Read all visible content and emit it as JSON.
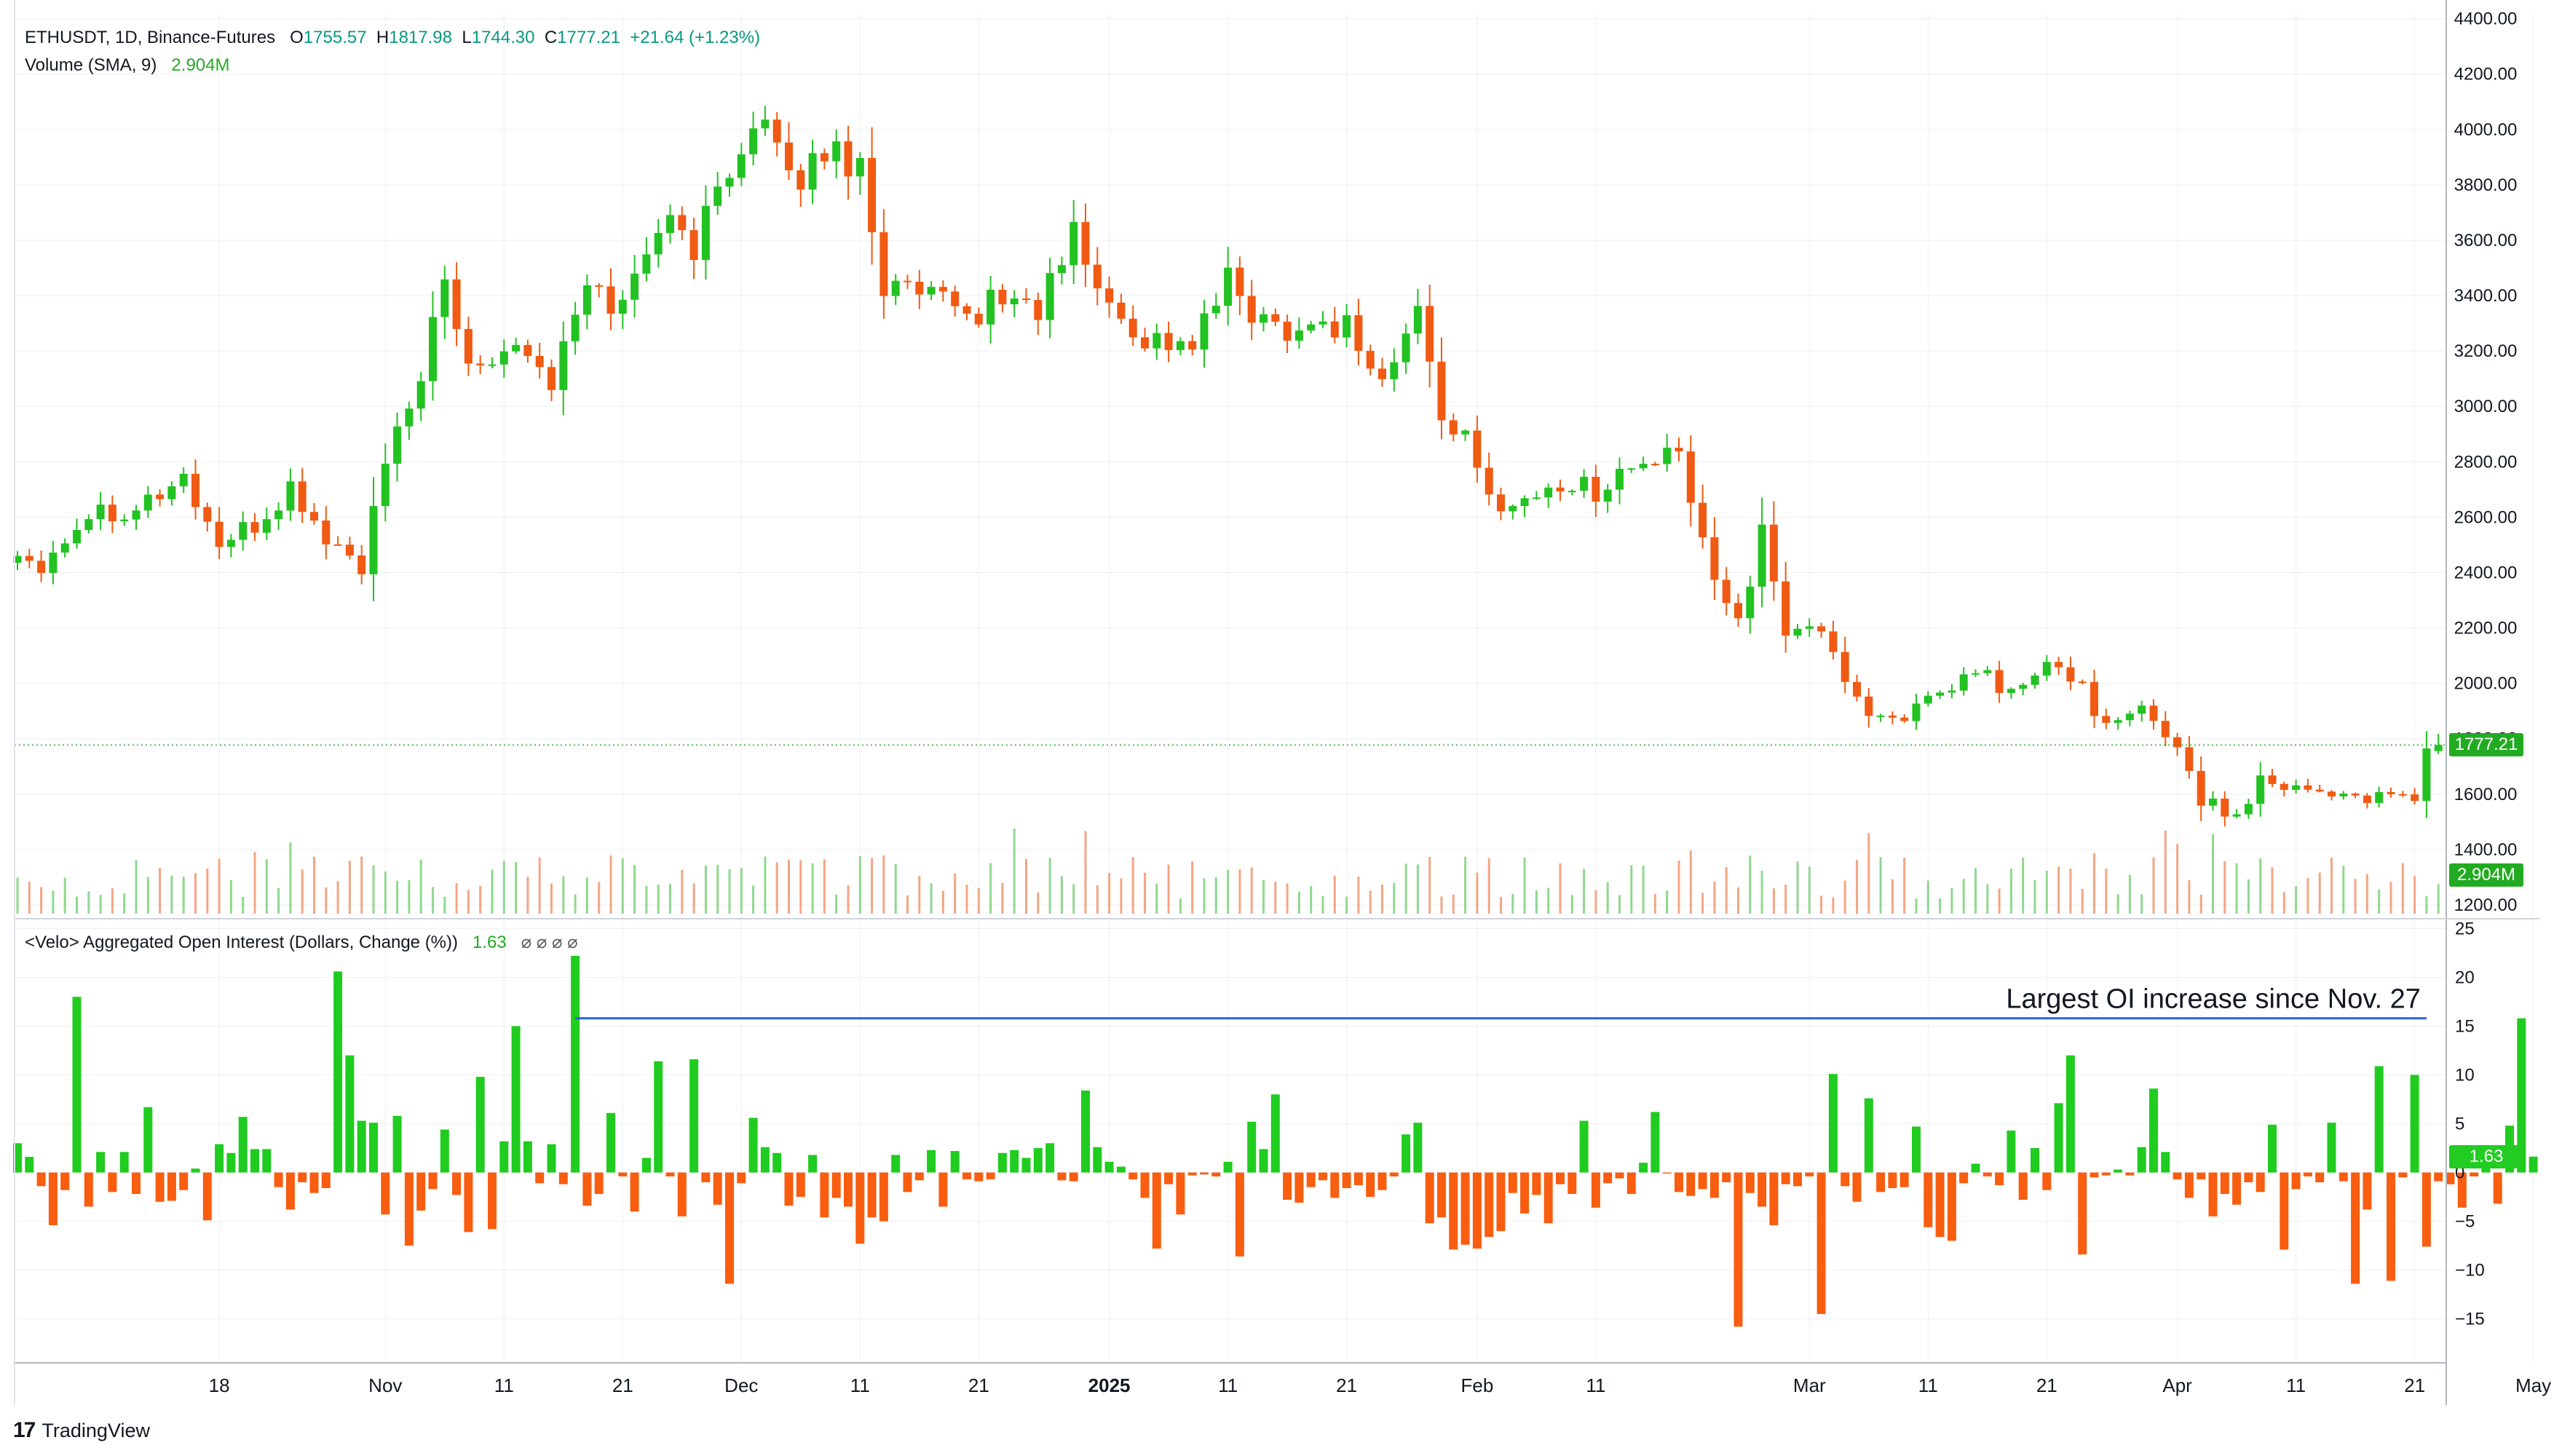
{
  "header": {
    "symbol_line": "ETHUSDT, 1D, Binance-Futures",
    "o_label": "O",
    "o_value": "1755.57",
    "h_label": "H",
    "h_value": "1817.98",
    "l_label": "L",
    "l_value": "1744.30",
    "c_label": "C",
    "c_value": "1777.21",
    "change": "+21.64 (+1.23%)",
    "volume_label": "Volume (SMA, 9)",
    "volume_value": "2.904M"
  },
  "oi_header": {
    "label": "<Velo> Aggregated Open Interest (Dollars, Change (%))",
    "value": "1.63",
    "placeholders": "⌀ ⌀ ⌀ ⌀"
  },
  "annotation": "Largest OI increase since Nov. 27",
  "price_tag": "1777.21",
  "volume_tag": "2.904M",
  "oi_tag": "1.63",
  "branding": "TradingView",
  "colors": {
    "up": "#22c222",
    "down": "#f05a12",
    "vol_up": "#8fd88f",
    "vol_down": "#f5a583",
    "oi_up": "#1fcc1f",
    "oi_down": "#f85d10",
    "grid": "#eef0f3",
    "axis": "#131722",
    "annotation_line": "#2a62d9",
    "price_line": "#22ab22"
  },
  "chart_data": [
    {
      "type": "candlestick",
      "title": "ETHUSDT, 1D, Binance-Futures",
      "y_ticks": [
        1200,
        1400,
        1600,
        1800,
        2000,
        2200,
        2400,
        2600,
        2800,
        3000,
        3200,
        3400,
        3600,
        3800,
        4000,
        4200,
        4400
      ],
      "ylim": [
        1150,
        4420
      ],
      "x_tick_labels": [
        "18",
        "Nov",
        "11",
        "21",
        "Dec",
        "11",
        "21",
        "2025",
        "11",
        "21",
        "Feb",
        "11",
        "Mar",
        "11",
        "21",
        "Apr",
        "11",
        "21",
        "May"
      ],
      "x_tick_days": [
        17,
        31,
        41,
        51,
        61,
        71,
        81,
        92,
        102,
        112,
        123,
        133,
        151,
        161,
        171,
        182,
        192,
        202,
        212
      ],
      "last_day": 204,
      "close_series": [
        {
          "day": 0,
          "v": 2460
        },
        {
          "day": 2,
          "v": 2440
        },
        {
          "day": 6,
          "v": 2620
        },
        {
          "day": 10,
          "v": 2640
        },
        {
          "day": 14,
          "v": 2740
        },
        {
          "day": 17,
          "v": 2500
        },
        {
          "day": 20,
          "v": 2560
        },
        {
          "day": 23,
          "v": 2700
        },
        {
          "day": 26,
          "v": 2520
        },
        {
          "day": 29,
          "v": 2420
        },
        {
          "day": 31,
          "v": 2780
        },
        {
          "day": 33,
          "v": 2990
        },
        {
          "day": 36,
          "v": 3420
        },
        {
          "day": 38,
          "v": 3150
        },
        {
          "day": 42,
          "v": 3250
        },
        {
          "day": 45,
          "v": 3090
        },
        {
          "day": 48,
          "v": 3430
        },
        {
          "day": 51,
          "v": 3360
        },
        {
          "day": 54,
          "v": 3680
        },
        {
          "day": 57,
          "v": 3580
        },
        {
          "day": 61,
          "v": 3970
        },
        {
          "day": 63,
          "v": 4010
        },
        {
          "day": 65,
          "v": 3790
        },
        {
          "day": 68,
          "v": 3930
        },
        {
          "day": 71,
          "v": 3880
        },
        {
          "day": 73,
          "v": 3440
        },
        {
          "day": 77,
          "v": 3380
        },
        {
          "day": 80,
          "v": 3320
        },
        {
          "day": 83,
          "v": 3400
        },
        {
          "day": 86,
          "v": 3350
        },
        {
          "day": 89,
          "v": 3620
        },
        {
          "day": 92,
          "v": 3350
        },
        {
          "day": 95,
          "v": 3250
        },
        {
          "day": 99,
          "v": 3220
        },
        {
          "day": 102,
          "v": 3450
        },
        {
          "day": 105,
          "v": 3300
        },
        {
          "day": 108,
          "v": 3290
        },
        {
          "day": 112,
          "v": 3300
        },
        {
          "day": 115,
          "v": 3080
        },
        {
          "day": 118,
          "v": 3340
        },
        {
          "day": 120,
          "v": 2980
        },
        {
          "day": 122,
          "v": 2870
        },
        {
          "day": 124,
          "v": 2660
        },
        {
          "day": 127,
          "v": 2660
        },
        {
          "day": 130,
          "v": 2720
        },
        {
          "day": 133,
          "v": 2700
        },
        {
          "day": 136,
          "v": 2780
        },
        {
          "day": 140,
          "v": 2820
        },
        {
          "day": 142,
          "v": 2500
        },
        {
          "day": 145,
          "v": 2230
        },
        {
          "day": 147,
          "v": 2530
        },
        {
          "day": 149,
          "v": 2190
        },
        {
          "day": 151,
          "v": 2220
        },
        {
          "day": 154,
          "v": 2030
        },
        {
          "day": 156,
          "v": 1880
        },
        {
          "day": 159,
          "v": 1890
        },
        {
          "day": 162,
          "v": 1940
        },
        {
          "day": 165,
          "v": 2050
        },
        {
          "day": 168,
          "v": 1960
        },
        {
          "day": 171,
          "v": 2060
        },
        {
          "day": 174,
          "v": 2000
        },
        {
          "day": 176,
          "v": 1830
        },
        {
          "day": 179,
          "v": 1900
        },
        {
          "day": 182,
          "v": 1780
        },
        {
          "day": 184,
          "v": 1580
        },
        {
          "day": 187,
          "v": 1520
        },
        {
          "day": 189,
          "v": 1660
        },
        {
          "day": 193,
          "v": 1620
        },
        {
          "day": 196,
          "v": 1600
        },
        {
          "day": 199,
          "v": 1580
        },
        {
          "day": 202,
          "v": 1590
        },
        {
          "day": 203,
          "v": 1756
        },
        {
          "day": 204,
          "v": 1777.21
        }
      ],
      "last_candle": {
        "open": 1755.57,
        "high": 1817.98,
        "low": 1744.3,
        "close": 1777.21
      }
    },
    {
      "type": "bar",
      "title": "<Velo> Aggregated Open Interest (Dollars, Change (%))",
      "y_ticks": [
        -15,
        -10,
        -5,
        0,
        5,
        10,
        15,
        20,
        25
      ],
      "ylim": [
        -19.5,
        26
      ],
      "values": [
        3.0,
        1.6,
        -1.4,
        -5.4,
        -1.8,
        18.0,
        -3.5,
        2.1,
        -2.0,
        2.1,
        -2.2,
        6.7,
        -3.0,
        -2.9,
        -1.8,
        0.4,
        -4.9,
        2.9,
        2.0,
        5.7,
        2.4,
        2.4,
        -1.5,
        -3.8,
        -1.0,
        -2.1,
        -1.6,
        20.6,
        12.0,
        5.3,
        5.1,
        -4.3,
        5.8,
        -7.5,
        -3.9,
        -1.7,
        4.4,
        -2.3,
        -6.1,
        9.8,
        -5.8,
        3.2,
        15.0,
        3.2,
        -1.1,
        2.9,
        -1.2,
        22.2,
        -3.4,
        -2.2,
        6.1,
        -0.4,
        -4.0,
        1.5,
        11.4,
        -0.4,
        -4.5,
        11.6,
        -1.0,
        -3.3,
        -11.4,
        -1.1,
        5.6,
        2.6,
        2.0,
        -3.4,
        -2.5,
        1.8,
        -4.6,
        -2.6,
        -3.5,
        -7.3,
        -4.6,
        -5.0,
        1.8,
        -2.0,
        -0.8,
        2.3,
        -3.5,
        2.2,
        -0.7,
        -0.9,
        -0.7,
        2.0,
        2.3,
        1.5,
        2.5,
        3.0,
        -0.8,
        -0.9,
        8.4,
        2.6,
        1.1,
        0.6,
        -0.7,
        -2.6,
        -7.8,
        -1.2,
        -4.3,
        -0.3,
        -0.2,
        -0.4,
        1.1,
        -8.6,
        5.2,
        2.4,
        8.0,
        -2.8,
        -3.1,
        -1.5,
        -0.8,
        -2.6,
        -1.6,
        -1.3,
        -2.5,
        -1.8,
        -0.4,
        3.9,
        5.1,
        -5.2,
        -4.6,
        -7.9,
        -7.4,
        -7.8,
        -6.6,
        -6.0,
        -2.1,
        -4.2,
        -2.3,
        -5.2,
        -1.2,
        -2.2,
        5.3,
        -3.6,
        -1.1,
        -0.6,
        -2.2,
        1.0,
        6.2,
        -0.1,
        -2.0,
        -2.4,
        -1.7,
        -2.6,
        -1.0,
        -15.8,
        -2.1,
        -3.5,
        -5.4,
        -1.2,
        -1.4,
        -0.4,
        -14.5,
        10.1,
        -1.4,
        -3.0,
        7.6,
        -2.0,
        -1.6,
        -1.5,
        4.7,
        -5.6,
        -6.6,
        -7.0,
        -1.1,
        0.9,
        -0.4,
        -1.3,
        4.3,
        -2.8,
        2.5,
        -1.8,
        7.1,
        12.0,
        -8.4,
        -0.5,
        -0.3,
        0.3,
        -0.3,
        2.6,
        8.6,
        2.1,
        -0.7,
        -2.6,
        -0.7,
        -4.5,
        -2.2,
        -3.3,
        -1.0,
        -2.0,
        4.9,
        -7.9,
        -1.7,
        -0.4,
        -1.0,
        5.1,
        -0.9,
        -11.4,
        -3.8,
        10.9,
        -11.1,
        -0.5,
        10.0,
        -7.6,
        -0.9,
        -1.2,
        -3.6,
        -0.4,
        2.5,
        -3.2,
        4.8,
        15.8,
        1.63
      ]
    }
  ]
}
